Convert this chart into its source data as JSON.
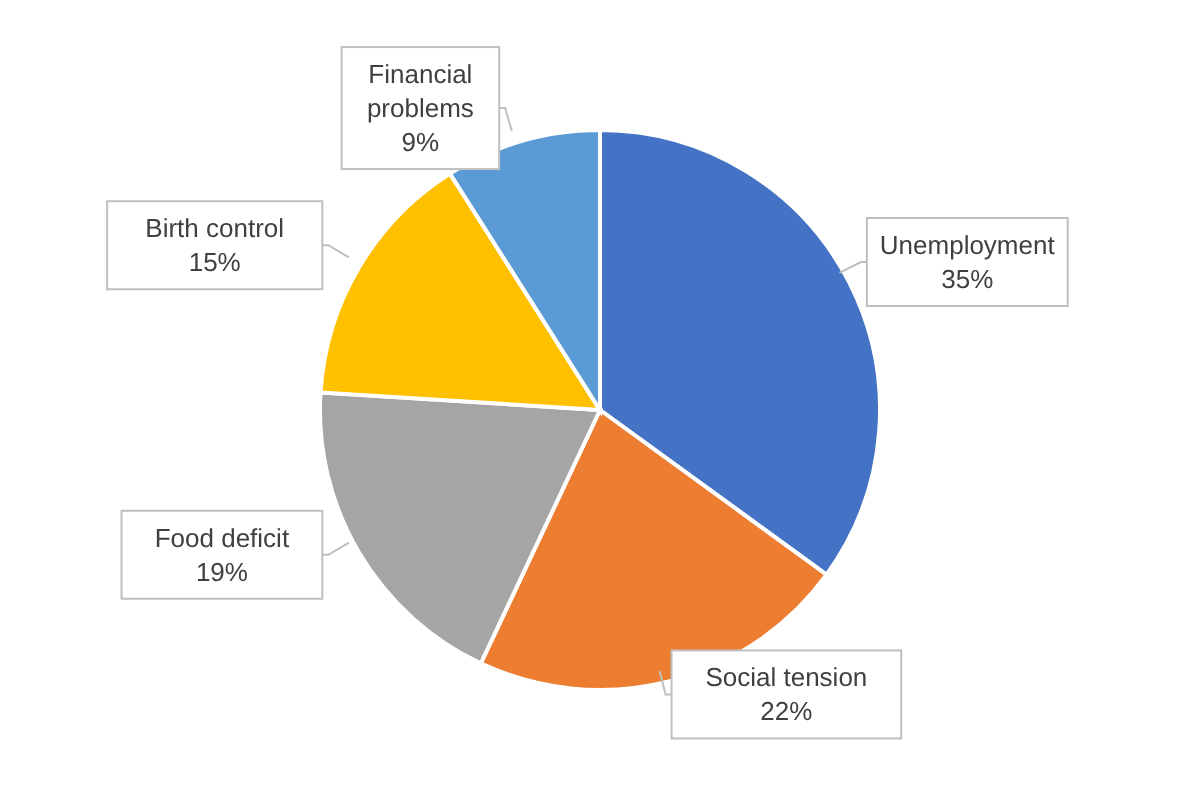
{
  "chart_data": {
    "type": "pie",
    "categories": [
      "Unemployment",
      "Social tension",
      "Food deficit",
      "Birth control",
      "Financial problems"
    ],
    "values": [
      35,
      22,
      19,
      15,
      9
    ],
    "value_labels": [
      "35%",
      "22%",
      "19%",
      "15%",
      "9%"
    ],
    "colors": [
      "#4472c4",
      "#ed7d31",
      "#a5a5a5",
      "#ffc000",
      "#5b9bd5"
    ],
    "data_labels": true,
    "legend": false
  }
}
